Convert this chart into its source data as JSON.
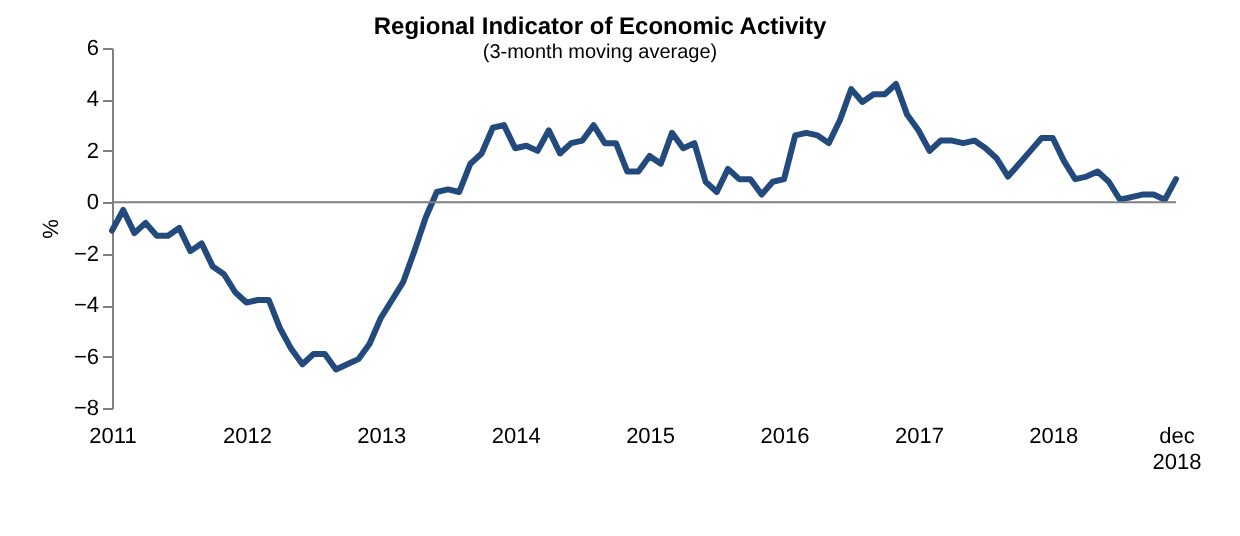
{
  "chart_data": {
    "type": "line",
    "title": "Regional Indicator of Economic Activity",
    "subtitle": "(3-month moving average)",
    "ylabel": "%",
    "categories": [
      "2011",
      null,
      null,
      null,
      null,
      null,
      null,
      null,
      null,
      null,
      null,
      null,
      "2012",
      null,
      null,
      null,
      null,
      null,
      null,
      null,
      null,
      null,
      null,
      null,
      "2013",
      null,
      null,
      null,
      null,
      null,
      null,
      null,
      null,
      null,
      null,
      null,
      "2014",
      null,
      null,
      null,
      null,
      null,
      null,
      null,
      null,
      null,
      null,
      null,
      "2015",
      null,
      null,
      null,
      null,
      null,
      null,
      null,
      null,
      null,
      null,
      null,
      "2016",
      null,
      null,
      null,
      null,
      null,
      null,
      null,
      null,
      null,
      null,
      null,
      "2017",
      null,
      null,
      null,
      null,
      null,
      null,
      null,
      null,
      null,
      null,
      null,
      "2018",
      null,
      null,
      null,
      null,
      null,
      null,
      null,
      null,
      null,
      null,
      "dec 2018"
    ],
    "series": [
      {
        "color": "#234a7c",
        "values": [
          -1.1,
          -0.3,
          -1.2,
          -0.8,
          -1.3,
          -1.3,
          -1.0,
          -1.9,
          -1.6,
          -2.5,
          -2.8,
          -3.5,
          -3.9,
          -3.8,
          -3.8,
          -4.9,
          -5.7,
          -6.3,
          -5.9,
          -5.9,
          -6.5,
          -6.3,
          -6.1,
          -5.5,
          -4.5,
          -3.8,
          -3.1,
          -1.9,
          -0.6,
          0.4,
          0.5,
          0.4,
          1.5,
          1.9,
          2.9,
          3.0,
          2.1,
          2.2,
          2.0,
          2.8,
          1.9,
          2.3,
          2.4,
          3.0,
          2.3,
          2.3,
          1.2,
          1.2,
          1.8,
          1.5,
          2.7,
          2.1,
          2.3,
          0.8,
          0.4,
          1.3,
          0.9,
          0.9,
          0.3,
          0.8,
          0.9,
          2.6,
          2.7,
          2.6,
          2.3,
          3.2,
          4.4,
          3.9,
          4.2,
          4.2,
          4.6,
          3.4,
          2.8,
          2.0,
          2.4,
          2.4,
          2.3,
          2.4,
          2.1,
          1.7,
          1.0,
          1.5,
          2.0,
          2.5,
          2.5,
          1.6,
          0.9,
          1.0,
          1.2,
          0.8,
          0.1,
          0.2,
          0.3,
          0.3,
          0.1,
          0.9
        ]
      }
    ],
    "ylim": [
      -8,
      6
    ],
    "yticks": [
      -8,
      -6,
      -4,
      -2,
      0,
      2,
      4,
      6
    ],
    "grid": false,
    "ref_lines": [
      {
        "axis": "y",
        "value": 0,
        "color": "#808080"
      }
    ]
  }
}
